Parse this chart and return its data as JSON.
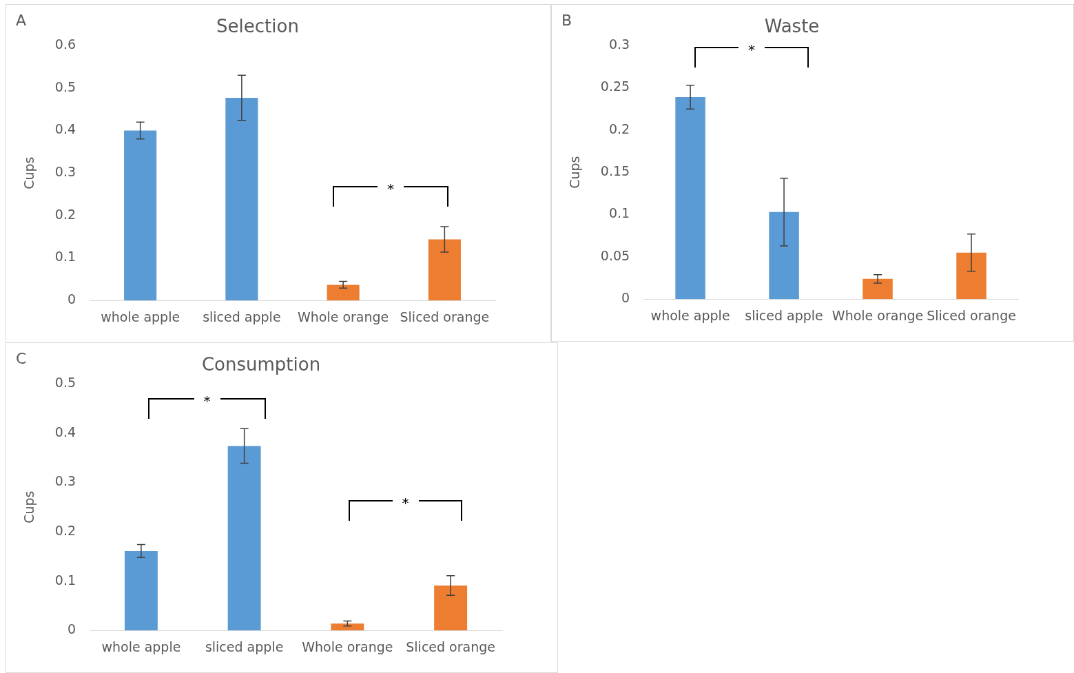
{
  "chart_data": [
    {
      "type": "bar",
      "title": "Selection",
      "ylabel": "Cups",
      "categories": [
        "whole apple",
        "sliced apple",
        "Whole orange",
        "Sliced orange"
      ],
      "values": [
        0.4,
        0.477,
        0.037,
        0.144
      ],
      "colors": [
        "#5b9bd5",
        "#5b9bd5",
        "#ed7d31",
        "#ed7d31"
      ],
      "errors": [
        0.02,
        0.053,
        0.008,
        0.03
      ],
      "ylim": [
        0,
        0.6
      ],
      "yticks": [
        0,
        0.1,
        0.2,
        0.3,
        0.4,
        0.5,
        0.6
      ],
      "grid": false,
      "legend": false,
      "annotations": [
        "A",
        "*"
      ]
    },
    {
      "type": "bar",
      "title": "Waste",
      "ylabel": "Cups",
      "categories": [
        "whole apple",
        "sliced apple",
        "Whole orange",
        "Sliced orange"
      ],
      "values": [
        0.239,
        0.103,
        0.024,
        0.055
      ],
      "colors": [
        "#5b9bd5",
        "#5b9bd5",
        "#ed7d31",
        "#ed7d31"
      ],
      "errors": [
        0.014,
        0.04,
        0.005,
        0.022
      ],
      "ylim": [
        0,
        0.3
      ],
      "yticks": [
        0,
        0.05,
        0.1,
        0.15,
        0.2,
        0.25,
        0.3
      ],
      "grid": false,
      "legend": false,
      "annotations": [
        "B",
        "*"
      ]
    },
    {
      "type": "bar",
      "title": "Consumption",
      "ylabel": "Cups",
      "categories": [
        "whole apple",
        "sliced apple",
        "Whole orange",
        "Sliced orange"
      ],
      "values": [
        0.161,
        0.374,
        0.014,
        0.091
      ],
      "colors": [
        "#5b9bd5",
        "#5b9bd5",
        "#ed7d31",
        "#ed7d31"
      ],
      "errors": [
        0.013,
        0.035,
        0.005,
        0.02
      ],
      "ylim": [
        0,
        0.5
      ],
      "yticks": [
        0,
        0.1,
        0.2,
        0.3,
        0.4,
        0.5
      ],
      "grid": false,
      "legend": false,
      "annotations": [
        "C",
        "*",
        "*"
      ]
    }
  ]
}
